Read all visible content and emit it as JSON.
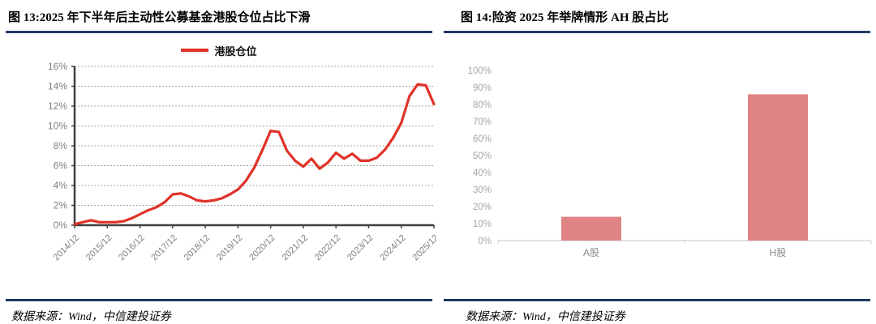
{
  "figures": [
    {
      "title": "图 13:2025 年下半年后主动性公募基金港股仓位占比下滑",
      "source": "数据来源：Wind，中信建投证券"
    },
    {
      "title": "图 14:险资 2025 年举牌情形 AH 股占比",
      "source": "数据来源：Wind，中信建投证券"
    }
  ],
  "colors": {
    "line_red": "#e03228",
    "bar_salmon": "#e08384",
    "rule_navy": "#1f3864",
    "axis_dark": "#404040",
    "grid_gray": "#a6a6a6",
    "tick_label_gray": "#7f7f7f",
    "tick_label_light": "#a6a6a6",
    "axis_light": "#d9d9d9",
    "bar_cat_label": "#8c8c8c"
  },
  "chart_data": [
    {
      "type": "line",
      "series_name": "港股仓位",
      "x": [
        "2014/12",
        "2015/03",
        "2015/06",
        "2015/09",
        "2015/12",
        "2016/03",
        "2016/06",
        "2016/09",
        "2016/12",
        "2017/03",
        "2017/06",
        "2017/09",
        "2017/12",
        "2018/03",
        "2018/06",
        "2018/09",
        "2018/12",
        "2019/03",
        "2019/06",
        "2019/09",
        "2019/12",
        "2020/03",
        "2020/06",
        "2020/09",
        "2020/12",
        "2021/03",
        "2021/06",
        "2021/09",
        "2021/12",
        "2022/03",
        "2022/06",
        "2022/09",
        "2022/12",
        "2023/03",
        "2023/06",
        "2023/09",
        "2023/12",
        "2024/03",
        "2024/06",
        "2024/09",
        "2024/12",
        "2025/03",
        "2025/06",
        "2025/09",
        "2025/12"
      ],
      "values": [
        0.1,
        0.3,
        0.5,
        0.3,
        0.3,
        0.3,
        0.4,
        0.7,
        1.1,
        1.5,
        1.8,
        2.3,
        3.1,
        3.2,
        2.9,
        2.5,
        2.4,
        2.5,
        2.7,
        3.1,
        3.6,
        4.5,
        5.8,
        7.6,
        9.5,
        9.4,
        7.5,
        6.5,
        5.9,
        6.7,
        5.7,
        6.3,
        7.3,
        6.7,
        7.2,
        6.5,
        6.5,
        6.8,
        7.6,
        8.8,
        10.3,
        13.0,
        14.2,
        14.1,
        12.2
      ],
      "x_tick_labels": [
        "2014/12",
        "2015/12",
        "2016/12",
        "2017/12",
        "2018/12",
        "2019/12",
        "2020/12",
        "2021/12",
        "2022/12",
        "2023/12",
        "2024/12",
        "2025/12"
      ],
      "y_tick_labels": [
        "0%",
        "2%",
        "4%",
        "6%",
        "8%",
        "10%",
        "12%",
        "14%",
        "16%"
      ],
      "ylim": [
        0,
        16
      ],
      "grid": "horizontal-dashed",
      "legend_position": "top-center"
    },
    {
      "type": "bar",
      "categories": [
        "A股",
        "H股"
      ],
      "values": [
        14,
        86
      ],
      "y_tick_labels": [
        "0%",
        "10%",
        "20%",
        "30%",
        "40%",
        "50%",
        "60%",
        "70%",
        "80%",
        "90%",
        "100%"
      ],
      "ylim": [
        0,
        100
      ],
      "grid": "off",
      "legend_position": "none"
    }
  ]
}
